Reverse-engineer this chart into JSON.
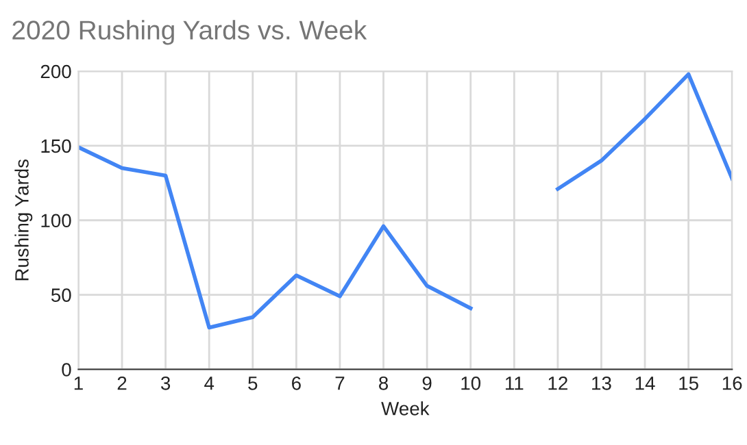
{
  "chart_data": {
    "type": "line",
    "title": "2020 Rushing Yards vs. Week",
    "xlabel": "Week",
    "ylabel": "Rushing Yards",
    "x": [
      1,
      2,
      3,
      4,
      5,
      6,
      7,
      8,
      9,
      10,
      11,
      12,
      13,
      14,
      15,
      16
    ],
    "series": [
      {
        "color": "#4285f4",
        "values": [
          149,
          135,
          130,
          28,
          35,
          63,
          49,
          96,
          56,
          41,
          null,
          121,
          140,
          168,
          198,
          128
        ]
      }
    ],
    "xlim": [
      1,
      16
    ],
    "xticks": [
      1,
      2,
      3,
      4,
      5,
      6,
      7,
      8,
      9,
      10,
      11,
      12,
      13,
      14,
      15,
      16
    ],
    "ylim": [
      0,
      200
    ],
    "yticks": [
      0,
      50,
      100,
      150,
      200
    ],
    "grid": true,
    "legend": false,
    "marker": "none",
    "line_style": "solid"
  }
}
